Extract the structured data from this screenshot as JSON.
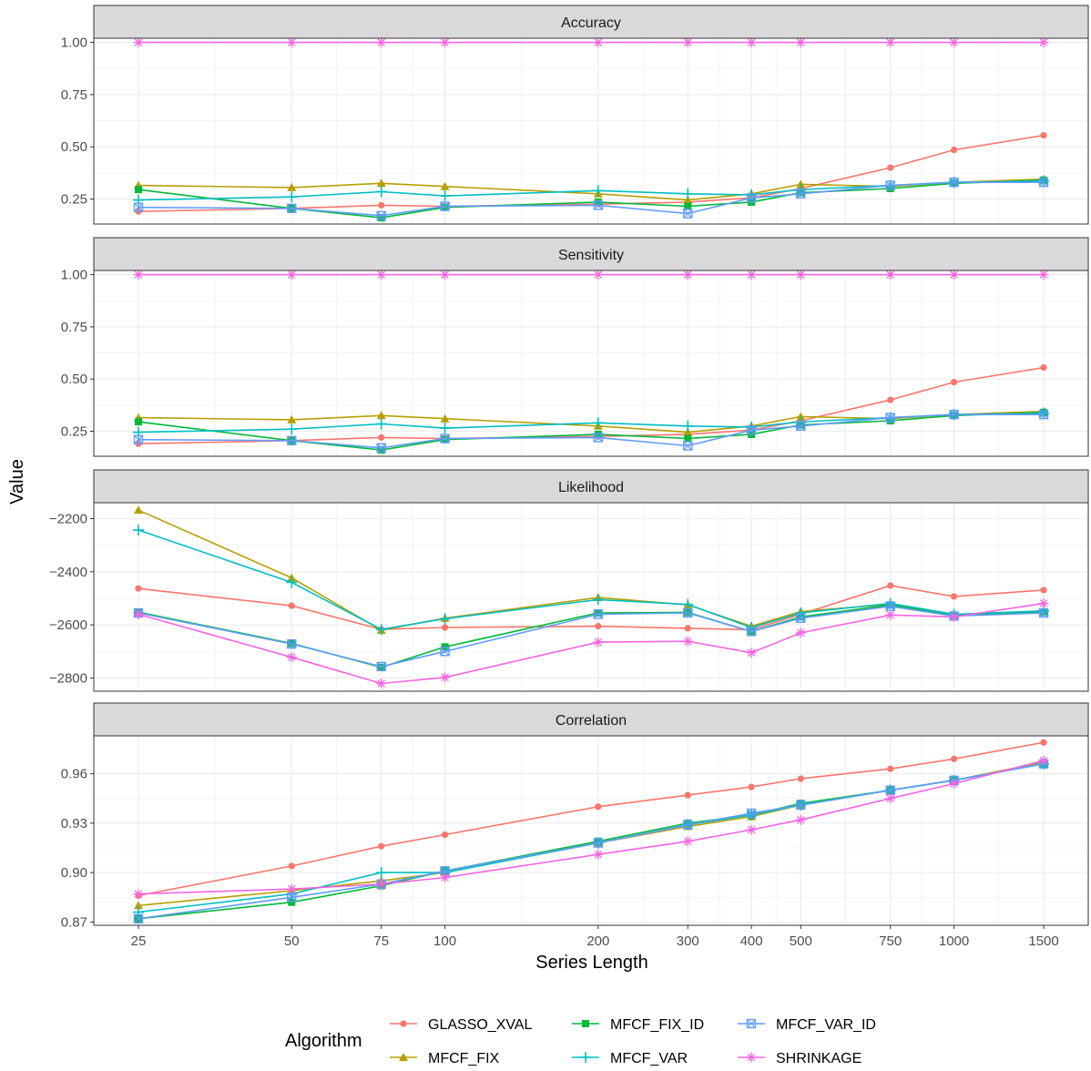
{
  "chart_data": {
    "type": "line",
    "xlabel": "Series Length",
    "ylabel": "Value",
    "x": [
      25,
      50,
      75,
      100,
      200,
      300,
      400,
      500,
      750,
      1000,
      1500
    ],
    "x_tick_labels": [
      "25",
      "50",
      "75",
      "100",
      "200",
      "300",
      "400",
      "500",
      "750",
      "1000",
      "1500"
    ],
    "x_scale": "log",
    "grid": true,
    "legend": {
      "title": "Algorithm",
      "placement": "bottom",
      "entries": [
        {
          "name": "GLASSO_XVAL",
          "color": "#F8766D",
          "marker": "circle"
        },
        {
          "name": "MFCF_FIX",
          "color": "#B79F00",
          "marker": "triangle"
        },
        {
          "name": "MFCF_FIX_ID",
          "color": "#00BA38",
          "marker": "square"
        },
        {
          "name": "MFCF_VAR",
          "color": "#00BFC4",
          "marker": "plus"
        },
        {
          "name": "MFCF_VAR_ID",
          "color": "#619CFF",
          "marker": "boxed-x"
        },
        {
          "name": "SHRINKAGE",
          "color": "#F564E3",
          "marker": "asterisk"
        }
      ]
    },
    "panels": [
      {
        "title": "Accuracy",
        "ylim": [
          0.13,
          1.02
        ],
        "y_ticks": [
          0.25,
          0.5,
          0.75,
          1.0
        ],
        "y_tick_labels": [
          "0.25",
          "0.50",
          "0.75",
          "1.00"
        ],
        "series": [
          {
            "name": "GLASSO_XVAL",
            "values": [
              0.19,
              0.205,
              0.22,
              0.215,
              0.225,
              0.235,
              0.255,
              0.3,
              0.4,
              0.485,
              0.555
            ]
          },
          {
            "name": "MFCF_FIX",
            "values": [
              0.315,
              0.305,
              0.325,
              0.31,
              0.275,
              0.245,
              0.275,
              0.32,
              0.31,
              0.33,
              0.345
            ]
          },
          {
            "name": "MFCF_FIX_ID",
            "values": [
              0.295,
              0.205,
              0.16,
              0.21,
              0.235,
              0.215,
              0.235,
              0.28,
              0.3,
              0.325,
              0.34
            ]
          },
          {
            "name": "MFCF_VAR",
            "values": [
              0.245,
              0.26,
              0.285,
              0.265,
              0.29,
              0.275,
              0.27,
              0.295,
              0.315,
              0.33,
              0.335
            ]
          },
          {
            "name": "MFCF_VAR_ID",
            "values": [
              0.21,
              0.205,
              0.17,
              0.215,
              0.22,
              0.18,
              0.255,
              0.275,
              0.315,
              0.33,
              0.33
            ]
          },
          {
            "name": "SHRINKAGE",
            "values": [
              1.0,
              1.0,
              1.0,
              1.0,
              1.0,
              1.0,
              1.0,
              1.0,
              1.0,
              1.0,
              1.0
            ]
          }
        ]
      },
      {
        "title": "Sensitivity",
        "ylim": [
          0.13,
          1.02
        ],
        "y_ticks": [
          0.25,
          0.5,
          0.75,
          1.0
        ],
        "y_tick_labels": [
          "0.25",
          "0.50",
          "0.75",
          "1.00"
        ],
        "series": [
          {
            "name": "GLASSO_XVAL",
            "values": [
              0.19,
              0.205,
              0.22,
              0.215,
              0.225,
              0.235,
              0.255,
              0.3,
              0.4,
              0.485,
              0.555
            ]
          },
          {
            "name": "MFCF_FIX",
            "values": [
              0.315,
              0.305,
              0.325,
              0.31,
              0.275,
              0.245,
              0.275,
              0.32,
              0.31,
              0.33,
              0.345
            ]
          },
          {
            "name": "MFCF_FIX_ID",
            "values": [
              0.295,
              0.205,
              0.16,
              0.21,
              0.235,
              0.215,
              0.235,
              0.28,
              0.3,
              0.325,
              0.34
            ]
          },
          {
            "name": "MFCF_VAR",
            "values": [
              0.245,
              0.26,
              0.285,
              0.265,
              0.29,
              0.275,
              0.27,
              0.295,
              0.315,
              0.33,
              0.335
            ]
          },
          {
            "name": "MFCF_VAR_ID",
            "values": [
              0.21,
              0.205,
              0.17,
              0.215,
              0.22,
              0.18,
              0.255,
              0.275,
              0.315,
              0.33,
              0.33
            ]
          },
          {
            "name": "SHRINKAGE",
            "values": [
              1.0,
              1.0,
              1.0,
              1.0,
              1.0,
              1.0,
              1.0,
              1.0,
              1.0,
              1.0,
              1.0
            ]
          }
        ]
      },
      {
        "title": "Likelihood",
        "ylim": [
          -2850,
          -2140
        ],
        "y_ticks": [
          -2800,
          -2600,
          -2400,
          -2200
        ],
        "y_tick_labels": [
          "−2800",
          "−2600",
          "−2400",
          "−2200"
        ],
        "series": [
          {
            "name": "GLASSO_XVAL",
            "values": [
              -2463,
              -2528,
              -2617,
              -2610,
              -2605,
              -2613,
              -2618,
              -2560,
              -2452,
              -2493,
              -2469
            ]
          },
          {
            "name": "MFCF_FIX",
            "values": [
              -2168,
              -2423,
              -2620,
              -2575,
              -2497,
              -2525,
              -2605,
              -2550,
              -2522,
              -2562,
              -2550
            ]
          },
          {
            "name": "MFCF_FIX_ID",
            "values": [
              -2552,
              -2670,
              -2760,
              -2683,
              -2555,
              -2553,
              -2625,
              -2570,
              -2525,
              -2565,
              -2552
            ]
          },
          {
            "name": "MFCF_VAR",
            "values": [
              -2243,
              -2440,
              -2617,
              -2577,
              -2505,
              -2523,
              -2610,
              -2555,
              -2519,
              -2560,
              -2547
            ]
          },
          {
            "name": "MFCF_VAR_ID",
            "values": [
              -2555,
              -2672,
              -2757,
              -2700,
              -2560,
              -2555,
              -2625,
              -2575,
              -2530,
              -2567,
              -2555
            ]
          },
          {
            "name": "SHRINKAGE",
            "values": [
              -2560,
              -2722,
              -2821,
              -2798,
              -2665,
              -2662,
              -2705,
              -2630,
              -2563,
              -2570,
              -2519
            ]
          }
        ]
      },
      {
        "title": "Correlation",
        "ylim": [
          0.868,
          0.983
        ],
        "y_ticks": [
          0.87,
          0.9,
          0.93,
          0.96
        ],
        "y_tick_labels": [
          "0.87",
          "0.90",
          "0.93",
          "0.96"
        ],
        "series": [
          {
            "name": "GLASSO_XVAL",
            "values": [
              0.886,
              0.904,
              0.916,
              0.923,
              0.94,
              0.947,
              0.952,
              0.957,
              0.963,
              0.969,
              0.979
            ]
          },
          {
            "name": "MFCF_FIX",
            "values": [
              0.88,
              0.889,
              0.895,
              0.9,
              0.918,
              0.928,
              0.934,
              0.941,
              0.95,
              0.956,
              0.967
            ]
          },
          {
            "name": "MFCF_FIX_ID",
            "values": [
              0.872,
              0.882,
              0.892,
              0.901,
              0.919,
              0.93,
              0.935,
              0.942,
              0.95,
              0.956,
              0.966
            ]
          },
          {
            "name": "MFCF_VAR",
            "values": [
              0.876,
              0.887,
              0.9,
              0.9,
              0.918,
              0.929,
              0.935,
              0.941,
              0.95,
              0.956,
              0.966
            ]
          },
          {
            "name": "MFCF_VAR_ID",
            "values": [
              0.872,
              0.885,
              0.893,
              0.901,
              0.918,
              0.929,
              0.936,
              0.941,
              0.95,
              0.956,
              0.966
            ]
          },
          {
            "name": "SHRINKAGE",
            "values": [
              0.887,
              0.89,
              0.893,
              0.897,
              0.911,
              0.919,
              0.926,
              0.932,
              0.945,
              0.954,
              0.968
            ]
          }
        ]
      }
    ]
  }
}
